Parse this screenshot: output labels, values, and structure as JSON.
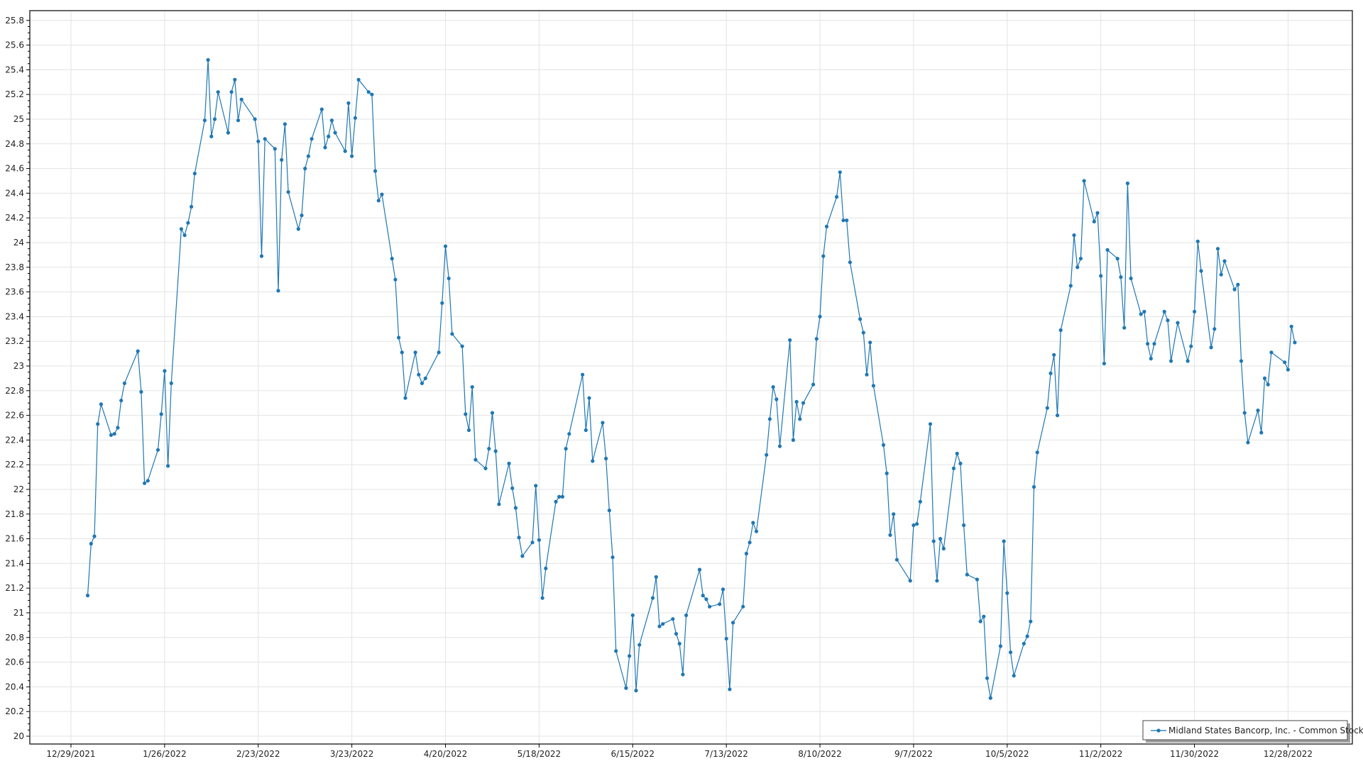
{
  "chart_data": {
    "type": "line",
    "title": "",
    "xlabel": "",
    "ylabel": "",
    "ylim": [
      20,
      25.8
    ],
    "y_tick_step": 0.2,
    "xlim": [
      "2021-12-29",
      "2023-01-11"
    ],
    "x_tick_labels": [
      "12/29/2021",
      "1/26/2022",
      "2/23/2022",
      "3/23/2022",
      "4/20/2022",
      "5/18/2022",
      "6/15/2022",
      "7/13/2022",
      "8/10/2022",
      "9/7/2022",
      "10/5/2022",
      "11/2/2022",
      "11/30/2022",
      "12/28/2022"
    ],
    "grid": true,
    "legend_position": "bottom-right",
    "colors": {
      "series": "#1f77b4",
      "grid": "#e3e3e3",
      "axis": "#000000"
    },
    "series": [
      {
        "name": "Midland States Bancorp, Inc. - Common Stock",
        "marker": "circle",
        "x": [
          "2022-01-03",
          "2022-01-04",
          "2022-01-05",
          "2022-01-06",
          "2022-01-07",
          "2022-01-10",
          "2022-01-11",
          "2022-01-12",
          "2022-01-13",
          "2022-01-14",
          "2022-01-18",
          "2022-01-19",
          "2022-01-20",
          "2022-01-21",
          "2022-01-24",
          "2022-01-25",
          "2022-01-26",
          "2022-01-27",
          "2022-01-28",
          "2022-01-31",
          "2022-02-01",
          "2022-02-02",
          "2022-02-03",
          "2022-02-04",
          "2022-02-07",
          "2022-02-08",
          "2022-02-09",
          "2022-02-10",
          "2022-02-11",
          "2022-02-14",
          "2022-02-15",
          "2022-02-16",
          "2022-02-17",
          "2022-02-18",
          "2022-02-22",
          "2022-02-23",
          "2022-02-24",
          "2022-02-25",
          "2022-02-28",
          "2022-03-01",
          "2022-03-02",
          "2022-03-03",
          "2022-03-04",
          "2022-03-07",
          "2022-03-08",
          "2022-03-09",
          "2022-03-10",
          "2022-03-11",
          "2022-03-14",
          "2022-03-15",
          "2022-03-16",
          "2022-03-17",
          "2022-03-18",
          "2022-03-21",
          "2022-03-22",
          "2022-03-23",
          "2022-03-24",
          "2022-03-25",
          "2022-03-28",
          "2022-03-29",
          "2022-03-30",
          "2022-03-31",
          "2022-04-01",
          "2022-04-04",
          "2022-04-05",
          "2022-04-06",
          "2022-04-07",
          "2022-04-08",
          "2022-04-11",
          "2022-04-12",
          "2022-04-13",
          "2022-04-14",
          "2022-04-18",
          "2022-04-19",
          "2022-04-20",
          "2022-04-21",
          "2022-04-22",
          "2022-04-25",
          "2022-04-26",
          "2022-04-27",
          "2022-04-28",
          "2022-04-29",
          "2022-05-02",
          "2022-05-03",
          "2022-05-04",
          "2022-05-05",
          "2022-05-06",
          "2022-05-09",
          "2022-05-10",
          "2022-05-11",
          "2022-05-12",
          "2022-05-13",
          "2022-05-16",
          "2022-05-17",
          "2022-05-18",
          "2022-05-19",
          "2022-05-20",
          "2022-05-23",
          "2022-05-24",
          "2022-05-25",
          "2022-05-26",
          "2022-05-27",
          "2022-05-31",
          "2022-06-01",
          "2022-06-02",
          "2022-06-03",
          "2022-06-06",
          "2022-06-07",
          "2022-06-08",
          "2022-06-09",
          "2022-06-10",
          "2022-06-13",
          "2022-06-14",
          "2022-06-15",
          "2022-06-16",
          "2022-06-17",
          "2022-06-21",
          "2022-06-22",
          "2022-06-23",
          "2022-06-24",
          "2022-06-27",
          "2022-06-28",
          "2022-06-29",
          "2022-06-30",
          "2022-07-01",
          "2022-07-05",
          "2022-07-06",
          "2022-07-07",
          "2022-07-08",
          "2022-07-11",
          "2022-07-12",
          "2022-07-13",
          "2022-07-14",
          "2022-07-15",
          "2022-07-18",
          "2022-07-19",
          "2022-07-20",
          "2022-07-21",
          "2022-07-22",
          "2022-07-25",
          "2022-07-26",
          "2022-07-27",
          "2022-07-28",
          "2022-07-29",
          "2022-08-01",
          "2022-08-02",
          "2022-08-03",
          "2022-08-04",
          "2022-08-05",
          "2022-08-08",
          "2022-08-09",
          "2022-08-10",
          "2022-08-11",
          "2022-08-12",
          "2022-08-15",
          "2022-08-16",
          "2022-08-17",
          "2022-08-18",
          "2022-08-19",
          "2022-08-22",
          "2022-08-23",
          "2022-08-24",
          "2022-08-25",
          "2022-08-26",
          "2022-08-29",
          "2022-08-30",
          "2022-08-31",
          "2022-09-01",
          "2022-09-02",
          "2022-09-06",
          "2022-09-07",
          "2022-09-08",
          "2022-09-09",
          "2022-09-12",
          "2022-09-13",
          "2022-09-14",
          "2022-09-15",
          "2022-09-16",
          "2022-09-19",
          "2022-09-20",
          "2022-09-21",
          "2022-09-22",
          "2022-09-23",
          "2022-09-26",
          "2022-09-27",
          "2022-09-28",
          "2022-09-29",
          "2022-09-30",
          "2022-10-03",
          "2022-10-04",
          "2022-10-05",
          "2022-10-06",
          "2022-10-07",
          "2022-10-10",
          "2022-10-11",
          "2022-10-12",
          "2022-10-13",
          "2022-10-14",
          "2022-10-17",
          "2022-10-18",
          "2022-10-19",
          "2022-10-20",
          "2022-10-21",
          "2022-10-24",
          "2022-10-25",
          "2022-10-26",
          "2022-10-27",
          "2022-10-28",
          "2022-10-31",
          "2022-11-01",
          "2022-11-02",
          "2022-11-03",
          "2022-11-04",
          "2022-11-07",
          "2022-11-08",
          "2022-11-09",
          "2022-11-10",
          "2022-11-11",
          "2022-11-14",
          "2022-11-15",
          "2022-11-16",
          "2022-11-17",
          "2022-11-18",
          "2022-11-21",
          "2022-11-22",
          "2022-11-23",
          "2022-11-25",
          "2022-11-28",
          "2022-11-29",
          "2022-11-30",
          "2022-12-01",
          "2022-12-02",
          "2022-12-05",
          "2022-12-06",
          "2022-12-07",
          "2022-12-08",
          "2022-12-09",
          "2022-12-12",
          "2022-12-13",
          "2022-12-14",
          "2022-12-15",
          "2022-12-16",
          "2022-12-19",
          "2022-12-20",
          "2022-12-21",
          "2022-12-22",
          "2022-12-23",
          "2022-12-27",
          "2022-12-28",
          "2022-12-29",
          "2022-12-30"
        ],
        "y": [
          21.14,
          21.56,
          21.62,
          22.53,
          22.69,
          22.44,
          22.45,
          22.5,
          22.72,
          22.86,
          23.12,
          22.79,
          22.05,
          22.07,
          22.32,
          22.61,
          22.96,
          22.19,
          22.86,
          24.11,
          24.06,
          24.16,
          24.29,
          24.56,
          24.99,
          25.48,
          24.86,
          25.0,
          25.22,
          24.89,
          25.22,
          25.32,
          24.99,
          25.16,
          25.0,
          24.82,
          23.89,
          24.84,
          24.76,
          23.61,
          24.67,
          24.96,
          24.41,
          24.11,
          24.22,
          24.6,
          24.7,
          24.84,
          25.08,
          24.77,
          24.86,
          24.99,
          24.89,
          24.74,
          25.13,
          24.7,
          25.01,
          25.32,
          25.22,
          25.2,
          24.58,
          24.34,
          24.39,
          23.87,
          23.7,
          23.23,
          23.11,
          22.74,
          23.11,
          22.93,
          22.86,
          22.9,
          23.11,
          23.51,
          23.97,
          23.71,
          23.26,
          23.16,
          22.61,
          22.48,
          22.83,
          22.24,
          22.17,
          22.33,
          22.62,
          22.31,
          21.88,
          22.21,
          22.01,
          21.85,
          21.61,
          21.46,
          21.57,
          22.03,
          21.59,
          21.12,
          21.36,
          21.9,
          21.94,
          21.94,
          22.33,
          22.45,
          22.93,
          22.48,
          22.74,
          22.23,
          22.54,
          22.25,
          21.83,
          21.45,
          20.69,
          20.39,
          20.65,
          20.98,
          20.37,
          20.74,
          21.12,
          21.29,
          20.89,
          20.91,
          20.95,
          20.83,
          20.75,
          20.5,
          20.98,
          21.35,
          21.14,
          21.11,
          21.05,
          21.07,
          21.19,
          20.79,
          20.38,
          20.92,
          21.05,
          21.48,
          21.57,
          21.73,
          21.66,
          22.28,
          22.57,
          22.83,
          22.73,
          22.35,
          23.21,
          22.4,
          22.71,
          22.57,
          22.7,
          22.85,
          23.22,
          23.4,
          23.89,
          24.13,
          24.37,
          24.57,
          24.18,
          24.18,
          23.84,
          23.38,
          23.27,
          22.93,
          23.19,
          22.84,
          22.36,
          22.13,
          21.63,
          21.8,
          21.43,
          21.26,
          21.71,
          21.72,
          21.9,
          22.53,
          21.58,
          21.26,
          21.6,
          21.52,
          22.17,
          22.29,
          22.21,
          21.71,
          21.31,
          21.27,
          20.93,
          20.97,
          20.47,
          20.31,
          20.73,
          21.58,
          21.16,
          20.68,
          20.49,
          20.75,
          20.81,
          20.93,
          22.02,
          22.3,
          22.66,
          22.94,
          23.09,
          22.6,
          23.29,
          23.65,
          24.06,
          23.8,
          23.87,
          24.5,
          24.17,
          24.24,
          23.73,
          23.02,
          23.94,
          23.87,
          23.72,
          23.31,
          24.48,
          23.71,
          23.42,
          23.44,
          23.18,
          23.06,
          23.18,
          23.44,
          23.37,
          23.04,
          23.35,
          23.04,
          23.16,
          23.44,
          24.01,
          23.77,
          23.15,
          23.3,
          23.95,
          23.74,
          23.85,
          23.62,
          23.66,
          23.04,
          22.62,
          22.38,
          22.64,
          22.46,
          22.9,
          22.85,
          23.11,
          23.03,
          22.97,
          23.32,
          23.19
        ]
      }
    ]
  },
  "legend": {
    "items": [
      {
        "label": "Midland States Bancorp, Inc. - Common Stock"
      }
    ]
  }
}
